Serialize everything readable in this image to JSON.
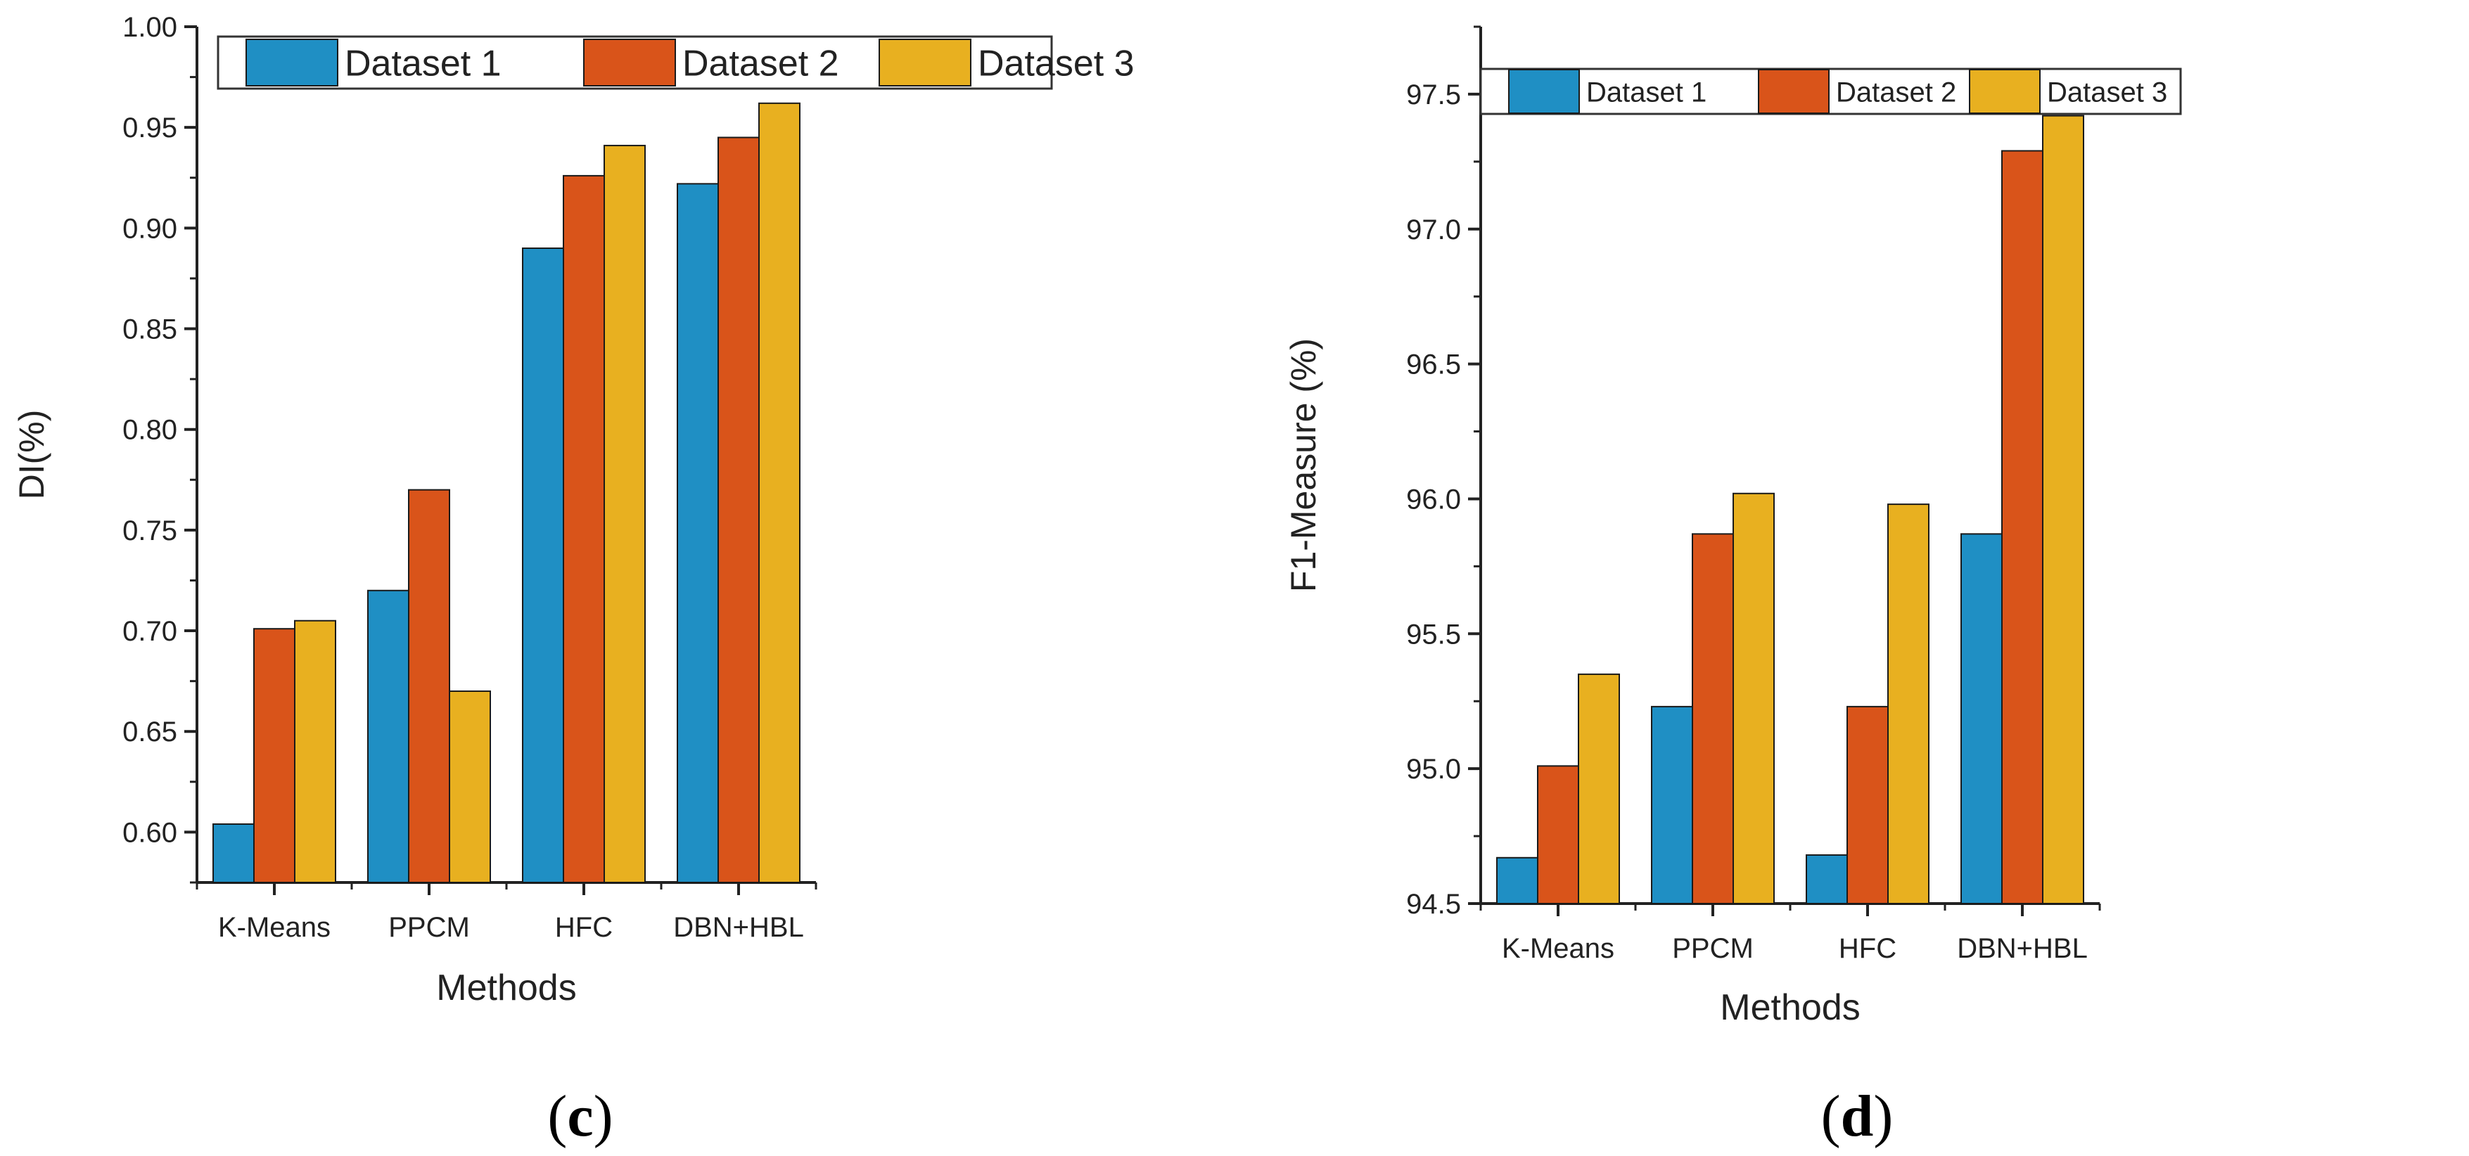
{
  "colors": {
    "dataset1": "#1f8fc4",
    "dataset2": "#d9541a",
    "dataset3": "#e8b020",
    "axis": "#222222"
  },
  "panels": [
    {
      "label_open": "(",
      "label_letter": "c",
      "label_close": ")"
    },
    {
      "label_open": "(",
      "label_letter": "d",
      "label_close": ")"
    }
  ],
  "chart_data": [
    {
      "type": "bar",
      "categories": [
        "K-Means",
        "PPCM",
        "HFC",
        "DBN+HBL"
      ],
      "series": [
        {
          "name": "Dataset 1",
          "values": [
            0.604,
            0.72,
            0.89,
            0.922
          ]
        },
        {
          "name": "Dataset 2",
          "values": [
            0.701,
            0.77,
            0.926,
            0.945
          ]
        },
        {
          "name": "Dataset 3",
          "values": [
            0.705,
            0.67,
            0.941,
            0.962
          ]
        }
      ],
      "xlabel": "Methods",
      "ylabel": "DI(%)",
      "ylim": [
        0.575,
        1.0
      ],
      "yticks": [
        "0.60",
        "0.65",
        "0.70",
        "0.75",
        "0.80",
        "0.85",
        "0.90",
        "0.95",
        "1.00"
      ],
      "legend_position": "top"
    },
    {
      "type": "bar",
      "categories": [
        "K-Means",
        "PPCM",
        "HFC",
        "DBN+HBL"
      ],
      "series": [
        {
          "name": "Dataset 1",
          "values": [
            94.67,
            95.23,
            94.68,
            95.87
          ]
        },
        {
          "name": "Dataset 2",
          "values": [
            95.01,
            95.87,
            95.23,
            97.29
          ]
        },
        {
          "name": "Dataset 3",
          "values": [
            95.35,
            96.02,
            95.98,
            97.42
          ]
        }
      ],
      "xlabel": "Methods",
      "ylabel": "F1-Measure (%)",
      "ylim": [
        94.5,
        97.75
      ],
      "yticks": [
        "94.5",
        "95.0",
        "95.5",
        "96.0",
        "96.5",
        "97.0",
        "97.5"
      ],
      "legend_position": "top"
    }
  ]
}
